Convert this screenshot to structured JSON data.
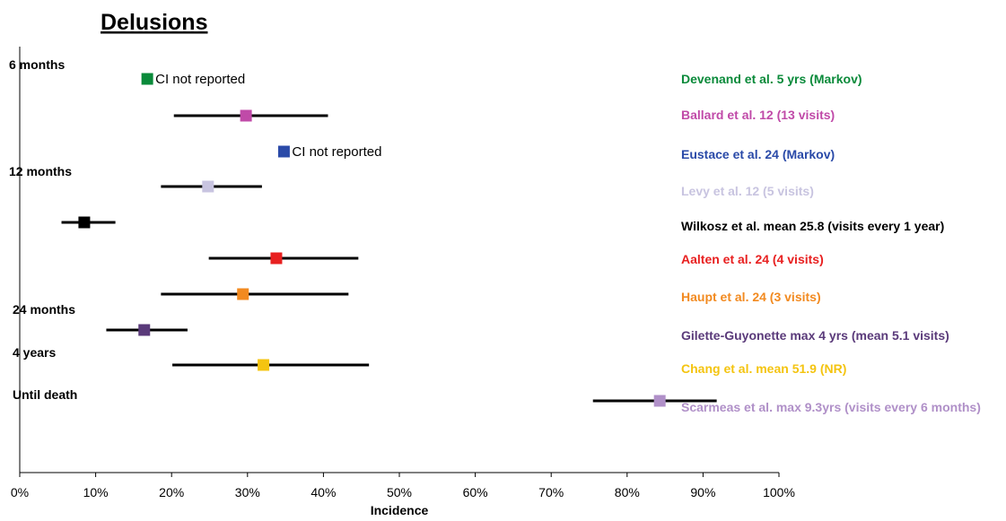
{
  "chart_data": {
    "type": "forest",
    "title": "Delusions",
    "xlabel": "Incidence",
    "xlim": [
      0,
      100
    ],
    "x_ticks": [
      "0%",
      "10%",
      "20%",
      "30%",
      "40%",
      "50%",
      "60%",
      "70%",
      "80%",
      "90%",
      "100%"
    ],
    "row_labels": [
      "6 months",
      "12 months",
      "24 months",
      "4 years",
      "Until death"
    ],
    "ci_note": "CI not reported",
    "series": [
      {
        "name": "Devenand et al. 5 yrs (Markov)",
        "color": "#0a8a3a",
        "value": 16.8,
        "ci": null
      },
      {
        "name": "Ballard et al. 12 (13 visits)",
        "color": "#c04aa8",
        "value": 29.8,
        "ci": [
          20.3,
          40.6
        ]
      },
      {
        "name": "Eustace et al. 24 (Markov)",
        "color": "#2a4aa8",
        "value": 34.8,
        "ci": null
      },
      {
        "name": "Levy et al. 12 (5 visits)",
        "color": "#c8c4e0",
        "value": 24.8,
        "ci": [
          18.6,
          31.9
        ]
      },
      {
        "name": "Wilkosz et al. mean 25.8 (visits every 1 year)",
        "color": "#000000",
        "value": 8.5,
        "ci": [
          5.5,
          12.6
        ]
      },
      {
        "name": "Aalten et al. 24 (4 visits)",
        "color": "#e82020",
        "value": 33.8,
        "ci": [
          24.9,
          44.6
        ]
      },
      {
        "name": "Haupt et al. 24 (3 visits)",
        "color": "#f28a20",
        "value": 29.4,
        "ci": [
          18.6,
          43.3
        ]
      },
      {
        "name": "Gilette-Guyonette max 4 yrs (mean 5.1 visits)",
        "color": "#5a3a7a",
        "value": 16.4,
        "ci": [
          11.4,
          22.1
        ]
      },
      {
        "name": "Chang et al. mean 51.9 (NR)",
        "color": "#f4c410",
        "value": 32.1,
        "ci": [
          20.1,
          46.0
        ]
      },
      {
        "name": "Scarmeas et al. max 9.3yrs (visits every 6 months)",
        "color": "#b090c8",
        "value": 84.3,
        "ci": [
          75.5,
          91.8
        ]
      }
    ]
  }
}
